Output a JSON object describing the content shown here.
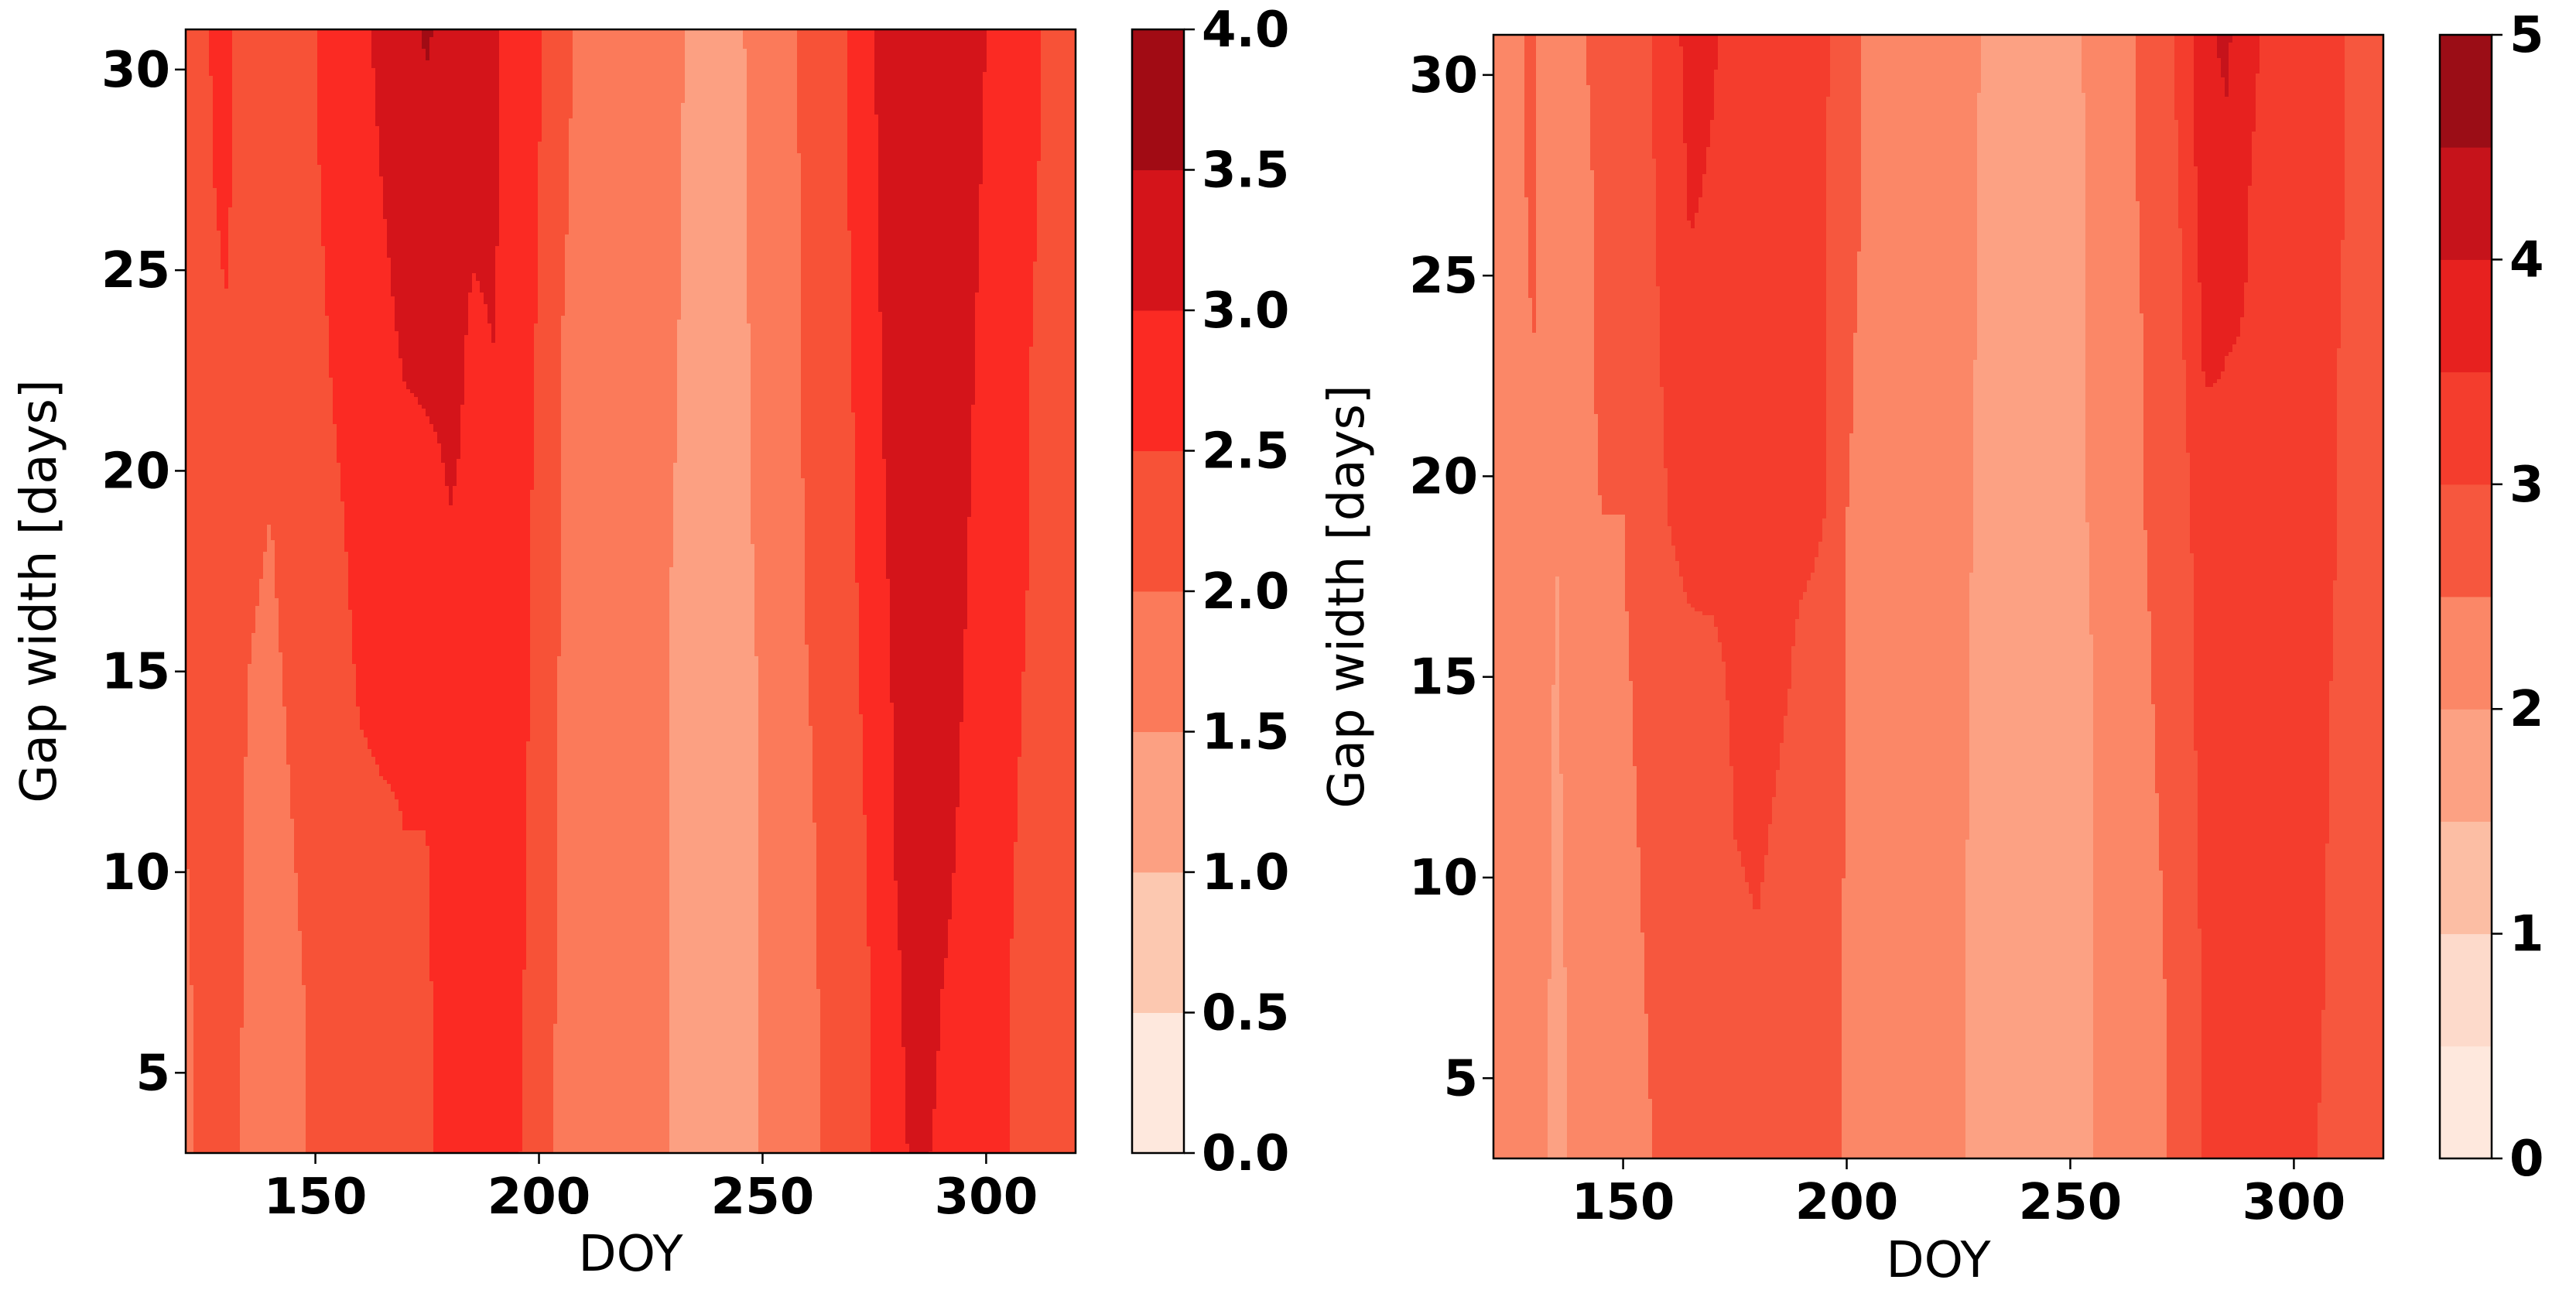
{
  "chart_data": [
    {
      "type": "heatmap",
      "xlabel": "DOY",
      "ylabel": "Gap width [days]",
      "xlim": [
        121,
        320
      ],
      "ylim": [
        3,
        31
      ],
      "x_ticks": [
        150,
        200,
        250,
        300
      ],
      "y_ticks": [
        5,
        10,
        15,
        20,
        25,
        30
      ],
      "grid": false,
      "colormap": "Reds",
      "colorbar": {
        "levels": [
          0.0,
          0.5,
          1.0,
          1.5,
          2.0,
          2.5,
          3.0,
          3.5,
          4.0
        ],
        "tick_labels": [
          "0.0",
          "0.5",
          "1.0",
          "1.5",
          "2.0",
          "2.5",
          "3.0",
          "3.5",
          "4.0"
        ],
        "colors": [
          "#fee8dd",
          "#fcc8b0",
          "#fca082",
          "#fb7a5a",
          "#f75237",
          "#fb2a23",
          "#d4141a",
          "#a10b14"
        ]
      },
      "x": [
        121,
        125,
        130,
        135,
        140,
        145,
        150,
        155,
        160,
        165,
        170,
        175,
        180,
        185,
        190,
        195,
        200,
        205,
        210,
        215,
        220,
        225,
        230,
        235,
        240,
        245,
        250,
        255,
        260,
        265,
        270,
        275,
        280,
        285,
        290,
        295,
        300,
        305,
        310,
        315,
        320
      ],
      "y": [
        3,
        7,
        11,
        15,
        19,
        23,
        27,
        31
      ],
      "z": [
        [
          1.95,
          2.05,
          2.15,
          1.9,
          1.85,
          1.95,
          2.05,
          2.2,
          2.3,
          2.35,
          2.45,
          2.45,
          2.65,
          2.85,
          2.75,
          2.55,
          2.25,
          1.85,
          1.75,
          1.7,
          1.75,
          1.65,
          1.45,
          1.3,
          1.35,
          1.3,
          1.55,
          1.65,
          1.95,
          2.05,
          2.25,
          2.55,
          2.95,
          3.05,
          2.95,
          2.85,
          2.65,
          2.5,
          2.35,
          2.25,
          2.2
        ],
        [
          1.95,
          2.1,
          2.15,
          1.95,
          1.9,
          1.95,
          2.05,
          2.2,
          2.35,
          2.4,
          2.45,
          2.45,
          2.7,
          2.85,
          2.8,
          2.6,
          2.3,
          1.9,
          1.75,
          1.7,
          1.75,
          1.65,
          1.45,
          1.3,
          1.3,
          1.3,
          1.55,
          1.65,
          1.95,
          2.05,
          2.3,
          2.55,
          2.95,
          3.15,
          3.0,
          2.9,
          2.7,
          2.5,
          2.4,
          2.25,
          2.2
        ],
        [
          2.0,
          2.1,
          2.2,
          1.95,
          1.9,
          2.0,
          2.1,
          2.25,
          2.4,
          2.45,
          2.5,
          2.5,
          2.75,
          2.9,
          2.85,
          2.6,
          2.35,
          1.9,
          1.8,
          1.7,
          1.75,
          1.65,
          1.45,
          1.3,
          1.3,
          1.35,
          1.55,
          1.7,
          1.95,
          2.1,
          2.35,
          2.6,
          3.05,
          3.2,
          3.1,
          2.95,
          2.75,
          2.55,
          2.4,
          2.3,
          2.2
        ],
        [
          2.05,
          2.15,
          2.2,
          2.0,
          1.95,
          2.05,
          2.15,
          2.35,
          2.55,
          2.6,
          2.55,
          2.6,
          2.85,
          2.95,
          2.95,
          2.65,
          2.4,
          1.95,
          1.8,
          1.75,
          1.8,
          1.7,
          1.45,
          1.35,
          1.35,
          1.35,
          1.55,
          1.7,
          2.0,
          2.1,
          2.4,
          2.7,
          3.1,
          3.25,
          3.15,
          3.0,
          2.8,
          2.6,
          2.45,
          2.3,
          2.25
        ],
        [
          2.1,
          2.2,
          2.3,
          2.05,
          2.0,
          2.1,
          2.25,
          2.45,
          2.65,
          2.75,
          2.8,
          2.85,
          3.0,
          2.95,
          2.95,
          2.7,
          2.4,
          2.0,
          1.85,
          1.75,
          1.8,
          1.7,
          1.5,
          1.35,
          1.35,
          1.4,
          1.6,
          1.75,
          2.05,
          2.15,
          2.45,
          2.8,
          3.2,
          3.3,
          3.2,
          3.05,
          2.85,
          2.65,
          2.5,
          2.35,
          2.25
        ],
        [
          2.2,
          2.3,
          2.45,
          2.1,
          2.05,
          2.2,
          2.35,
          2.6,
          2.75,
          2.85,
          3.05,
          3.1,
          3.1,
          2.95,
          3.0,
          2.75,
          2.45,
          2.0,
          1.85,
          1.8,
          1.85,
          1.75,
          1.55,
          1.35,
          1.35,
          1.4,
          1.65,
          1.8,
          2.1,
          2.2,
          2.5,
          2.9,
          3.25,
          3.35,
          3.25,
          3.1,
          2.9,
          2.7,
          2.5,
          2.35,
          2.3
        ],
        [
          2.3,
          2.4,
          2.6,
          2.15,
          2.1,
          2.3,
          2.45,
          2.7,
          2.85,
          3.0,
          3.25,
          3.3,
          3.25,
          3.05,
          3.05,
          2.8,
          2.5,
          2.05,
          1.9,
          1.8,
          1.85,
          1.75,
          1.55,
          1.4,
          1.4,
          1.45,
          1.65,
          1.8,
          2.1,
          2.25,
          2.55,
          2.95,
          3.25,
          3.35,
          3.3,
          3.15,
          2.95,
          2.7,
          2.55,
          2.4,
          2.3
        ],
        [
          2.35,
          2.45,
          2.65,
          2.2,
          2.15,
          2.35,
          2.5,
          2.75,
          2.9,
          3.1,
          3.4,
          3.55,
          3.35,
          3.3,
          3.05,
          2.85,
          2.55,
          2.1,
          1.9,
          1.85,
          1.85,
          1.8,
          1.6,
          1.4,
          1.4,
          1.45,
          1.7,
          1.85,
          2.15,
          2.25,
          2.6,
          3.0,
          3.3,
          3.4,
          3.35,
          3.2,
          3.0,
          2.75,
          2.55,
          2.45,
          2.35
        ]
      ]
    },
    {
      "type": "heatmap",
      "xlabel": "DOY",
      "ylabel": "Gap width [days]",
      "xlim": [
        121,
        320
      ],
      "ylim": [
        3,
        31
      ],
      "x_ticks": [
        150,
        200,
        250,
        300
      ],
      "y_ticks": [
        5,
        10,
        15,
        20,
        25,
        30
      ],
      "grid": false,
      "colormap": "Reds",
      "colorbar": {
        "levels": [
          0.0,
          0.5,
          1.0,
          1.5,
          2.0,
          2.5,
          3.0,
          3.5,
          4.0,
          4.5,
          5.0
        ],
        "tick_values": [
          0,
          1,
          2,
          3,
          4,
          5
        ],
        "tick_labels": [
          "0",
          "1",
          "2",
          "3",
          "4",
          "5"
        ],
        "colors": [
          "#fee8dd",
          "#fddacb",
          "#fcbea4",
          "#fca183",
          "#fb8767",
          "#f6573e",
          "#f43d2d",
          "#e7211f",
          "#c6131b",
          "#9b0d16"
        ]
      },
      "x": [
        121,
        125,
        130,
        135,
        140,
        145,
        150,
        155,
        160,
        165,
        170,
        175,
        180,
        185,
        190,
        195,
        200,
        205,
        210,
        215,
        220,
        225,
        230,
        235,
        240,
        245,
        250,
        255,
        260,
        265,
        270,
        275,
        280,
        285,
        290,
        295,
        300,
        305,
        310,
        315,
        320
      ],
      "y": [
        3,
        7,
        11,
        15,
        19,
        23,
        27,
        31
      ],
      "z": [
        [
          2.2,
          2.25,
          2.3,
          1.8,
          2.2,
          2.35,
          2.3,
          2.45,
          2.6,
          2.65,
          2.55,
          2.85,
          2.85,
          2.8,
          2.75,
          2.8,
          2.4,
          2.3,
          2.25,
          2.2,
          2.15,
          2.05,
          1.85,
          1.8,
          1.8,
          1.75,
          1.75,
          2.0,
          2.05,
          2.35,
          2.45,
          2.65,
          3.05,
          3.35,
          3.3,
          3.2,
          3.1,
          3.0,
          2.9,
          2.7,
          2.55
        ],
        [
          2.25,
          2.25,
          2.35,
          1.85,
          2.2,
          2.4,
          2.35,
          2.5,
          2.65,
          2.7,
          2.6,
          2.9,
          2.95,
          2.85,
          2.8,
          2.85,
          2.4,
          2.3,
          2.25,
          2.2,
          2.15,
          2.05,
          1.85,
          1.8,
          1.8,
          1.75,
          1.75,
          2.0,
          2.05,
          2.35,
          2.45,
          2.65,
          3.05,
          3.4,
          3.35,
          3.25,
          3.15,
          3.05,
          2.9,
          2.7,
          2.55
        ],
        [
          2.25,
          2.3,
          2.35,
          1.9,
          2.25,
          2.4,
          2.4,
          2.55,
          2.7,
          2.75,
          2.7,
          3.0,
          3.05,
          2.95,
          2.85,
          2.9,
          2.45,
          2.35,
          2.3,
          2.2,
          2.2,
          2.1,
          1.85,
          1.8,
          1.8,
          1.8,
          1.8,
          2.0,
          2.1,
          2.4,
          2.5,
          2.7,
          3.15,
          3.4,
          3.35,
          3.25,
          3.15,
          3.05,
          2.95,
          2.75,
          2.6
        ],
        [
          2.3,
          2.3,
          2.4,
          1.95,
          2.3,
          2.45,
          2.45,
          2.6,
          2.75,
          2.85,
          2.85,
          3.1,
          3.15,
          3.05,
          2.95,
          2.95,
          2.5,
          2.35,
          2.3,
          2.25,
          2.2,
          2.1,
          1.9,
          1.8,
          1.8,
          1.8,
          1.8,
          2.0,
          2.1,
          2.4,
          2.55,
          2.75,
          3.2,
          3.45,
          3.4,
          3.3,
          3.2,
          3.1,
          2.95,
          2.75,
          2.6
        ],
        [
          2.3,
          2.35,
          2.45,
          2.0,
          2.35,
          2.5,
          2.5,
          2.7,
          3.0,
          3.2,
          3.25,
          3.25,
          3.2,
          3.05,
          3.05,
          3.0,
          2.5,
          2.4,
          2.35,
          2.25,
          2.25,
          2.15,
          1.9,
          1.85,
          1.85,
          1.8,
          1.85,
          2.05,
          2.1,
          2.45,
          2.6,
          2.8,
          3.3,
          3.45,
          3.4,
          3.3,
          3.2,
          3.1,
          3.0,
          2.8,
          2.65
        ],
        [
          2.35,
          2.4,
          2.5,
          2.05,
          2.4,
          2.55,
          2.55,
          2.8,
          3.1,
          3.35,
          3.3,
          3.25,
          3.25,
          3.1,
          3.05,
          3.05,
          2.55,
          2.4,
          2.35,
          2.25,
          2.25,
          2.15,
          1.95,
          1.85,
          1.85,
          1.8,
          1.85,
          2.05,
          2.15,
          2.45,
          2.65,
          2.95,
          3.55,
          3.5,
          3.45,
          3.35,
          3.25,
          3.15,
          3.0,
          2.8,
          2.65
        ],
        [
          2.35,
          2.4,
          2.55,
          2.05,
          2.4,
          2.55,
          2.6,
          2.85,
          3.2,
          3.55,
          3.45,
          3.3,
          3.25,
          3.15,
          3.1,
          3.05,
          2.6,
          2.45,
          2.4,
          2.3,
          2.25,
          2.2,
          1.95,
          1.85,
          1.85,
          1.85,
          1.85,
          2.05,
          2.15,
          2.5,
          2.7,
          3.05,
          3.75,
          3.85,
          3.5,
          3.4,
          3.3,
          3.2,
          3.05,
          2.85,
          2.7
        ],
        [
          2.4,
          2.45,
          2.55,
          2.1,
          2.45,
          2.6,
          2.65,
          2.9,
          3.3,
          3.65,
          3.55,
          3.35,
          3.3,
          3.2,
          3.1,
          3.1,
          2.6,
          2.45,
          2.4,
          2.3,
          2.3,
          2.2,
          2.0,
          1.9,
          1.9,
          1.85,
          1.9,
          2.1,
          2.2,
          2.5,
          2.75,
          3.15,
          3.9,
          4.1,
          3.55,
          3.45,
          3.35,
          3.25,
          3.05,
          2.85,
          2.7
        ]
      ]
    }
  ]
}
